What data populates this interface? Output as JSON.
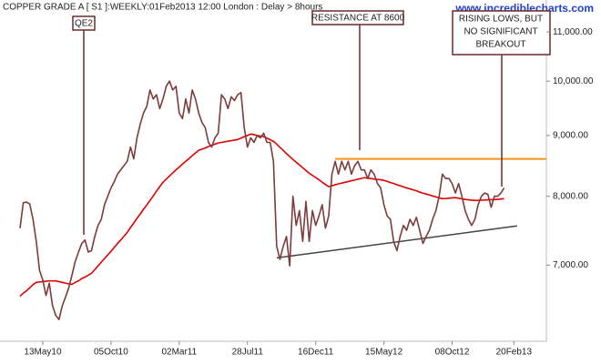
{
  "chart_data": {
    "type": "line",
    "title": "COPPER GRADE A [ S1 ]:WEEKLY:01Feb2013 12:00 London : Delay > 8hours",
    "watermark": "www.incrediblecharts.com",
    "log_scale": true,
    "grid": false,
    "ylim": [
      6040,
      11600
    ],
    "yticks": [
      {
        "value": 7000,
        "label": "7,000.00"
      },
      {
        "value": 8000,
        "label": "8,000.00"
      },
      {
        "value": 9000,
        "label": "9,000.00"
      },
      {
        "value": 10000,
        "label": "10,000.00"
      },
      {
        "value": 11000,
        "label": "11,000.00"
      }
    ],
    "categories": [
      null,
      null,
      null,
      null,
      null,
      null,
      null,
      "13May10",
      null,
      null,
      null,
      null,
      null,
      null,
      null,
      null,
      null,
      null,
      null,
      null,
      null,
      null,
      null,
      null,
      null,
      null,
      null,
      null,
      "05Oct10",
      null,
      null,
      null,
      null,
      null,
      null,
      null,
      null,
      null,
      null,
      null,
      null,
      null,
      null,
      null,
      null,
      null,
      null,
      null,
      null,
      "02Mar11",
      null,
      null,
      null,
      null,
      null,
      null,
      null,
      null,
      null,
      null,
      null,
      null,
      null,
      null,
      null,
      null,
      null,
      null,
      null,
      null,
      "28Jul11",
      null,
      null,
      null,
      null,
      null,
      null,
      null,
      null,
      null,
      null,
      null,
      null,
      null,
      null,
      null,
      null,
      null,
      null,
      null,
      null,
      "16Dec11",
      null,
      null,
      null,
      null,
      null,
      null,
      null,
      null,
      null,
      null,
      null,
      null,
      null,
      null,
      null,
      null,
      null,
      null,
      null,
      null,
      "15May12",
      null,
      null,
      null,
      null,
      null,
      null,
      null,
      null,
      null,
      null,
      null,
      null,
      null,
      null,
      null,
      null,
      null,
      null,
      null,
      null,
      "08Oct12",
      null,
      null,
      null,
      null,
      null,
      null,
      null,
      null,
      null,
      null,
      null,
      null,
      null,
      null,
      null,
      null,
      null,
      null,
      "20Feb13",
      null,
      null,
      null,
      null,
      null,
      null,
      null,
      null,
      null,
      null
    ],
    "series": [
      {
        "color": "#7e3b3b",
        "values": [
          7520,
          7900,
          7910,
          7880,
          7650,
          7330,
          6930,
          6800,
          6600,
          6760,
          6470,
          6350,
          6300,
          6470,
          6580,
          6700,
          6870,
          7050,
          7180,
          7300,
          7350,
          7180,
          7200,
          7400,
          7560,
          7650,
          7870,
          8000,
          8130,
          8230,
          8350,
          8420,
          8490,
          8560,
          8800,
          8600,
          8960,
          9200,
          9400,
          9520,
          9830,
          9660,
          9740,
          9480,
          9660,
          9900,
          10000,
          9830,
          9900,
          9400,
          9300,
          9660,
          9400,
          9830,
          9660,
          9400,
          9230,
          9140,
          8880,
          8800,
          8960,
          9040,
          9740,
          9660,
          9480,
          9700,
          9630,
          9740,
          9780,
          9140,
          8800,
          8960,
          8880,
          9000,
          8960,
          9040,
          8880,
          8880,
          8560,
          7260,
          7080,
          7260,
          7400,
          6990,
          8000,
          7560,
          7780,
          7330,
          7920,
          7330,
          7780,
          7560,
          7700,
          7870,
          7520,
          7700,
          8350,
          8560,
          8350,
          8560,
          8420,
          8560,
          8350,
          8490,
          8560,
          8420,
          8420,
          8280,
          8420,
          8350,
          8200,
          8130,
          7870,
          7700,
          7650,
          7330,
          7200,
          7400,
          7560,
          7490,
          7650,
          7560,
          7680,
          7490,
          7300,
          7400,
          7490,
          7650,
          7780,
          8000,
          8350,
          8280,
          8280,
          8200,
          8050,
          8200,
          8000,
          7780,
          7650,
          7560,
          7650,
          7870,
          8000,
          8050,
          8030,
          7830,
          8000,
          8000,
          8050,
          8130,
          null,
          null,
          null,
          null,
          null,
          null,
          null,
          null,
          null,
          null,
          null,
          null,
          null
        ]
      },
      {
        "color": "#e00000",
        "values": [
          6590,
          6630,
          6660,
          6700,
          6740,
          6770,
          6775,
          6780,
          6785,
          6790,
          6790,
          6790,
          6780,
          6770,
          6760,
          6750,
          6745,
          6770,
          6790,
          6820,
          6840,
          6865,
          6890,
          6940,
          6990,
          7040,
          7090,
          7140,
          7190,
          7245,
          7300,
          7350,
          7405,
          7460,
          7530,
          7595,
          7665,
          7730,
          7800,
          7865,
          7935,
          8005,
          8080,
          8150,
          8220,
          8270,
          8320,
          8370,
          8420,
          8465,
          8515,
          8560,
          8605,
          8655,
          8700,
          8745,
          8765,
          8785,
          8810,
          8830,
          8850,
          8870,
          8880,
          8890,
          8900,
          8910,
          8920,
          8930,
          8955,
          8980,
          9000,
          9025,
          9015,
          9000,
          8990,
          8980,
          8955,
          8925,
          8900,
          8850,
          8795,
          8745,
          8690,
          8640,
          8590,
          8545,
          8500,
          8455,
          8410,
          8365,
          8330,
          8295,
          8260,
          8220,
          8185,
          8150,
          8165,
          8180,
          8195,
          8205,
          8220,
          8230,
          8245,
          8255,
          8270,
          8280,
          8293,
          8285,
          8280,
          8270,
          8265,
          8260,
          8250,
          8235,
          8215,
          8200,
          8180,
          8165,
          8147,
          8130,
          8115,
          8100,
          8085,
          8065,
          8048,
          8035,
          8020,
          8005,
          7990,
          7975,
          7963,
          7965,
          7970,
          7975,
          7978,
          7970,
          7960,
          7950,
          7945,
          7940,
          7935,
          7937,
          7940,
          7942,
          7945,
          7947,
          7949,
          7952,
          7958,
          7963,
          null,
          null,
          null,
          null,
          null,
          null,
          null,
          null,
          null,
          null,
          null,
          null,
          null
        ]
      }
    ],
    "resistance": {
      "value": 8600,
      "color": "#f7941d"
    },
    "trendline": {
      "values": [
        7100,
        7553
      ],
      "color": "#444444"
    },
    "annotations": [
      {
        "lines": [
          "QE2"
        ]
      },
      {
        "lines": [
          "RESISTANCE AT 8600"
        ]
      },
      {
        "lines": [
          "RISING LOWS, BUT",
          "NO SIGNIFICANT",
          "BREAKOUT"
        ]
      }
    ]
  }
}
